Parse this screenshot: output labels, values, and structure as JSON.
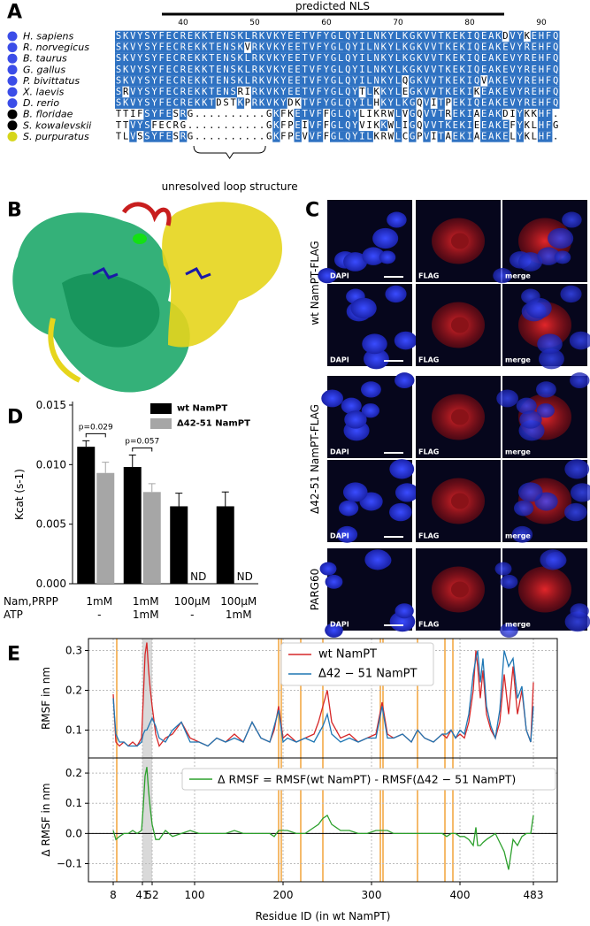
{
  "panel_labels": [
    "A",
    "B",
    "C",
    "D",
    "E"
  ],
  "alignment": {
    "header": "predicted NLS",
    "ruler": [
      40,
      50,
      60,
      70,
      80,
      90
    ],
    "sequences": [
      {
        "species": "H. sapiens",
        "color": "#3b4de8",
        "sequence": "SKVYSYFECREKKTENSKLRKVKYEETVFYGLQYILNKYLKGKVVTKEKIQEAKDVYKEHFQ"
      },
      {
        "species": "R. norvegicus",
        "color": "#3b4de8",
        "sequence": "SKVYSYFECREKKTENSKVRKVKYEETVFYGLQYILNKYLKGKVVTKEKIQEAKEVYREHFQ"
      },
      {
        "species": "B. taurus",
        "color": "#3b4de8",
        "sequence": "SKVYSYFECREKKTENSKLRKVKYEETVFYGLQYILNKYLKGKVVTKEKIQEAKEVYREHFQ"
      },
      {
        "species": "G. gallus",
        "color": "#3b4de8",
        "sequence": "SKVYSYFECREKKTENSKLRKVKYEETVFYGLQYILNKYLKGKVVTKEKIQEAKEVYREHFQ"
      },
      {
        "species": "P. bivittatus",
        "color": "#3b4de8",
        "sequence": "SKVYSYFECREKKTENSKLRKVKYEETVFYGLQYILNKYLQGKVVTKEKIQVAKEVYREHFQ"
      },
      {
        "species": "X. laevis",
        "color": "#3b4de8",
        "sequence": "SRVYSYFECREKKTENSRIRKVKYEETVFYGLQYTLKKYLEGKVVTKEKIKEAKEVYREHFQ"
      },
      {
        "species": "D. rerio",
        "color": "#3b4de8",
        "sequence": "SKVYSYFECREKKTDSTKPRKVKYDKTVFYGLQYILHKYLKGQVITPEKIQEAKEVYREHFQ"
      },
      {
        "species": "B. floridae",
        "color": "#000000",
        "sequence": "TTIFSYFESRG..........GKFKETVFFGLQYLIKRWLVGQVVTREKIAEAKDIYKKHF."
      },
      {
        "species": "S. kowalevskii",
        "color": "#000000",
        "sequence": "TTVYSFECRG...........GKFPEIVFFGLQYVIKKWLIGQVVTKEKIEEAKEFYKLHFG"
      },
      {
        "species": "S. purpuratus",
        "color": "#d6d61a",
        "sequence": "TLVSSYFESRG..........GKFPEVVFFGLQYILKRWLCGPVITAEKIAEAKELYKLHF."
      }
    ],
    "footnote": "unresolved loop structure"
  },
  "micrographs": {
    "channels": [
      "DAPI",
      "FLAG",
      "merge"
    ],
    "groups": [
      "wt NamPT-FLAG",
      "Δ42-51 NamPT-FLAG",
      "PARG60"
    ]
  },
  "chart_data": [
    {
      "type": "bar",
      "y_label": "Kcat (s-1)",
      "ylim": [
        0,
        0.015
      ],
      "yticks": [
        {
          "value": 0,
          "label": "0.000"
        },
        0.005,
        {
          "value": 0.01,
          "label": "0.010"
        },
        0.015
      ],
      "category_rows": [
        {
          "name": "Nam,PRPP",
          "labels": [
            "1mM",
            "1mM",
            "100μM",
            "100μM"
          ]
        },
        {
          "name": "ATP",
          "labels": [
            "-",
            "1mM",
            "-",
            "1mM"
          ]
        }
      ],
      "series": [
        {
          "name": "wt NamPT",
          "color": "#000000",
          "values": [
            0.0115,
            0.0098,
            0.0065,
            0.0065
          ],
          "errors": [
            0.0005,
            0.001,
            0.0011,
            0.0012
          ]
        },
        {
          "name": "Δ42-51 NamPT",
          "color": "#a6a6a6",
          "values": [
            0.0093,
            0.0077,
            null,
            null
          ],
          "errors": [
            0.0009,
            0.0007,
            null,
            null
          ],
          "value_labels": [
            null,
            null,
            "ND",
            "ND"
          ]
        }
      ],
      "p_values": [
        "p=0.029",
        "p=0.057",
        null,
        null
      ]
    },
    {
      "type": "line",
      "xlabel": "Residue ID (in wt NamPT)",
      "xlim": [
        -20,
        510
      ],
      "xticks": [
        8,
        41,
        52,
        100,
        200,
        300,
        400,
        483
      ],
      "grid": true,
      "shaded_range": [
        41,
        52
      ],
      "vlines": [
        12,
        195,
        198,
        220,
        245,
        310,
        313,
        352,
        383,
        392
      ],
      "x": [
        8,
        11,
        15,
        20,
        25,
        30,
        35,
        40,
        42,
        44,
        46,
        48,
        50,
        52,
        56,
        60,
        67,
        75,
        85,
        95,
        105,
        115,
        125,
        135,
        145,
        155,
        165,
        175,
        185,
        190,
        195,
        200,
        205,
        215,
        225,
        235,
        240,
        245,
        250,
        255,
        265,
        275,
        285,
        295,
        305,
        312,
        318,
        325,
        335,
        345,
        352,
        360,
        370,
        380,
        385,
        390,
        395,
        400,
        405,
        410,
        415,
        418,
        420,
        423,
        426,
        430,
        435,
        440,
        445,
        450,
        455,
        460,
        465,
        470,
        475,
        480,
        483
      ],
      "subplots": [
        {
          "ylabel": "RMSF in nm",
          "ylim": [
            0.03,
            0.33
          ],
          "yticks": [
            0.1,
            0.2,
            0.3
          ],
          "series": [
            {
              "name": "wt NamPT",
              "color": "#d62728",
              "values": [
                0.19,
                0.07,
                0.06,
                0.07,
                0.06,
                0.07,
                0.06,
                0.08,
                0.18,
                0.29,
                0.32,
                0.25,
                0.2,
                0.16,
                0.09,
                0.06,
                0.08,
                0.09,
                0.12,
                0.08,
                0.07,
                0.06,
                0.08,
                0.07,
                0.09,
                0.07,
                0.12,
                0.08,
                0.07,
                0.1,
                0.16,
                0.08,
                0.09,
                0.07,
                0.08,
                0.09,
                0.12,
                0.16,
                0.2,
                0.12,
                0.08,
                0.09,
                0.07,
                0.08,
                0.09,
                0.17,
                0.09,
                0.08,
                0.09,
                0.07,
                0.1,
                0.08,
                0.07,
                0.09,
                0.08,
                0.1,
                0.08,
                0.09,
                0.08,
                0.12,
                0.2,
                0.3,
                0.26,
                0.18,
                0.25,
                0.14,
                0.1,
                0.08,
                0.12,
                0.24,
                0.14,
                0.26,
                0.14,
                0.2,
                0.1,
                0.07,
                0.22
              ]
            },
            {
              "name": "Δ42 − 51 NamPT",
              "color": "#1f77b4",
              "values": [
                0.18,
                0.09,
                0.07,
                0.07,
                0.06,
                0.06,
                0.06,
                0.07,
                0.09,
                0.1,
                0.1,
                0.11,
                0.12,
                0.13,
                0.11,
                0.08,
                0.07,
                0.1,
                0.12,
                0.07,
                0.07,
                0.06,
                0.08,
                0.07,
                0.08,
                0.07,
                0.12,
                0.08,
                0.07,
                0.11,
                0.15,
                0.07,
                0.08,
                0.07,
                0.08,
                0.07,
                0.09,
                0.11,
                0.14,
                0.09,
                0.07,
                0.08,
                0.07,
                0.08,
                0.08,
                0.16,
                0.08,
                0.08,
                0.09,
                0.07,
                0.1,
                0.08,
                0.07,
                0.09,
                0.09,
                0.1,
                0.08,
                0.1,
                0.09,
                0.14,
                0.24,
                0.28,
                0.3,
                0.22,
                0.28,
                0.16,
                0.11,
                0.08,
                0.15,
                0.3,
                0.26,
                0.28,
                0.18,
                0.21,
                0.1,
                0.07,
                0.16
              ]
            }
          ]
        },
        {
          "ylabel": "Δ RMSF in nm",
          "ylim": [
            -0.16,
            0.25
          ],
          "yticks": [
            {
              "value": -0.1,
              "label": "−0.1"
            },
            {
              "value": 0,
              "label": "0.0"
            },
            0.1,
            0.2
          ],
          "zero_line": true,
          "series": [
            {
              "name": "Δ RMSF = RMSF(wt NamPT) - RMSF(Δ42 − 51 NamPT)",
              "color": "#2ca02c",
              "values": [
                0.01,
                -0.02,
                -0.01,
                0.0,
                0.0,
                0.01,
                0.0,
                0.01,
                0.09,
                0.19,
                0.22,
                0.14,
                0.08,
                0.03,
                -0.02,
                -0.02,
                0.01,
                -0.01,
                0.0,
                0.01,
                0.0,
                0.0,
                0.0,
                0.0,
                0.01,
                0.0,
                0.0,
                0.0,
                0.0,
                -0.01,
                0.01,
                0.01,
                0.01,
                0.0,
                0.0,
                0.02,
                0.03,
                0.05,
                0.06,
                0.03,
                0.01,
                0.01,
                0.0,
                0.0,
                0.01,
                0.01,
                0.01,
                0.0,
                0.0,
                0.0,
                0.0,
                0.0,
                0.0,
                0.0,
                -0.01,
                0.0,
                0.0,
                -0.01,
                -0.01,
                -0.02,
                -0.04,
                0.02,
                -0.04,
                -0.04,
                -0.03,
                -0.02,
                -0.01,
                0.0,
                -0.03,
                -0.06,
                -0.12,
                -0.02,
                -0.04,
                -0.01,
                0.0,
                0.0,
                0.06
              ]
            }
          ]
        }
      ]
    }
  ]
}
